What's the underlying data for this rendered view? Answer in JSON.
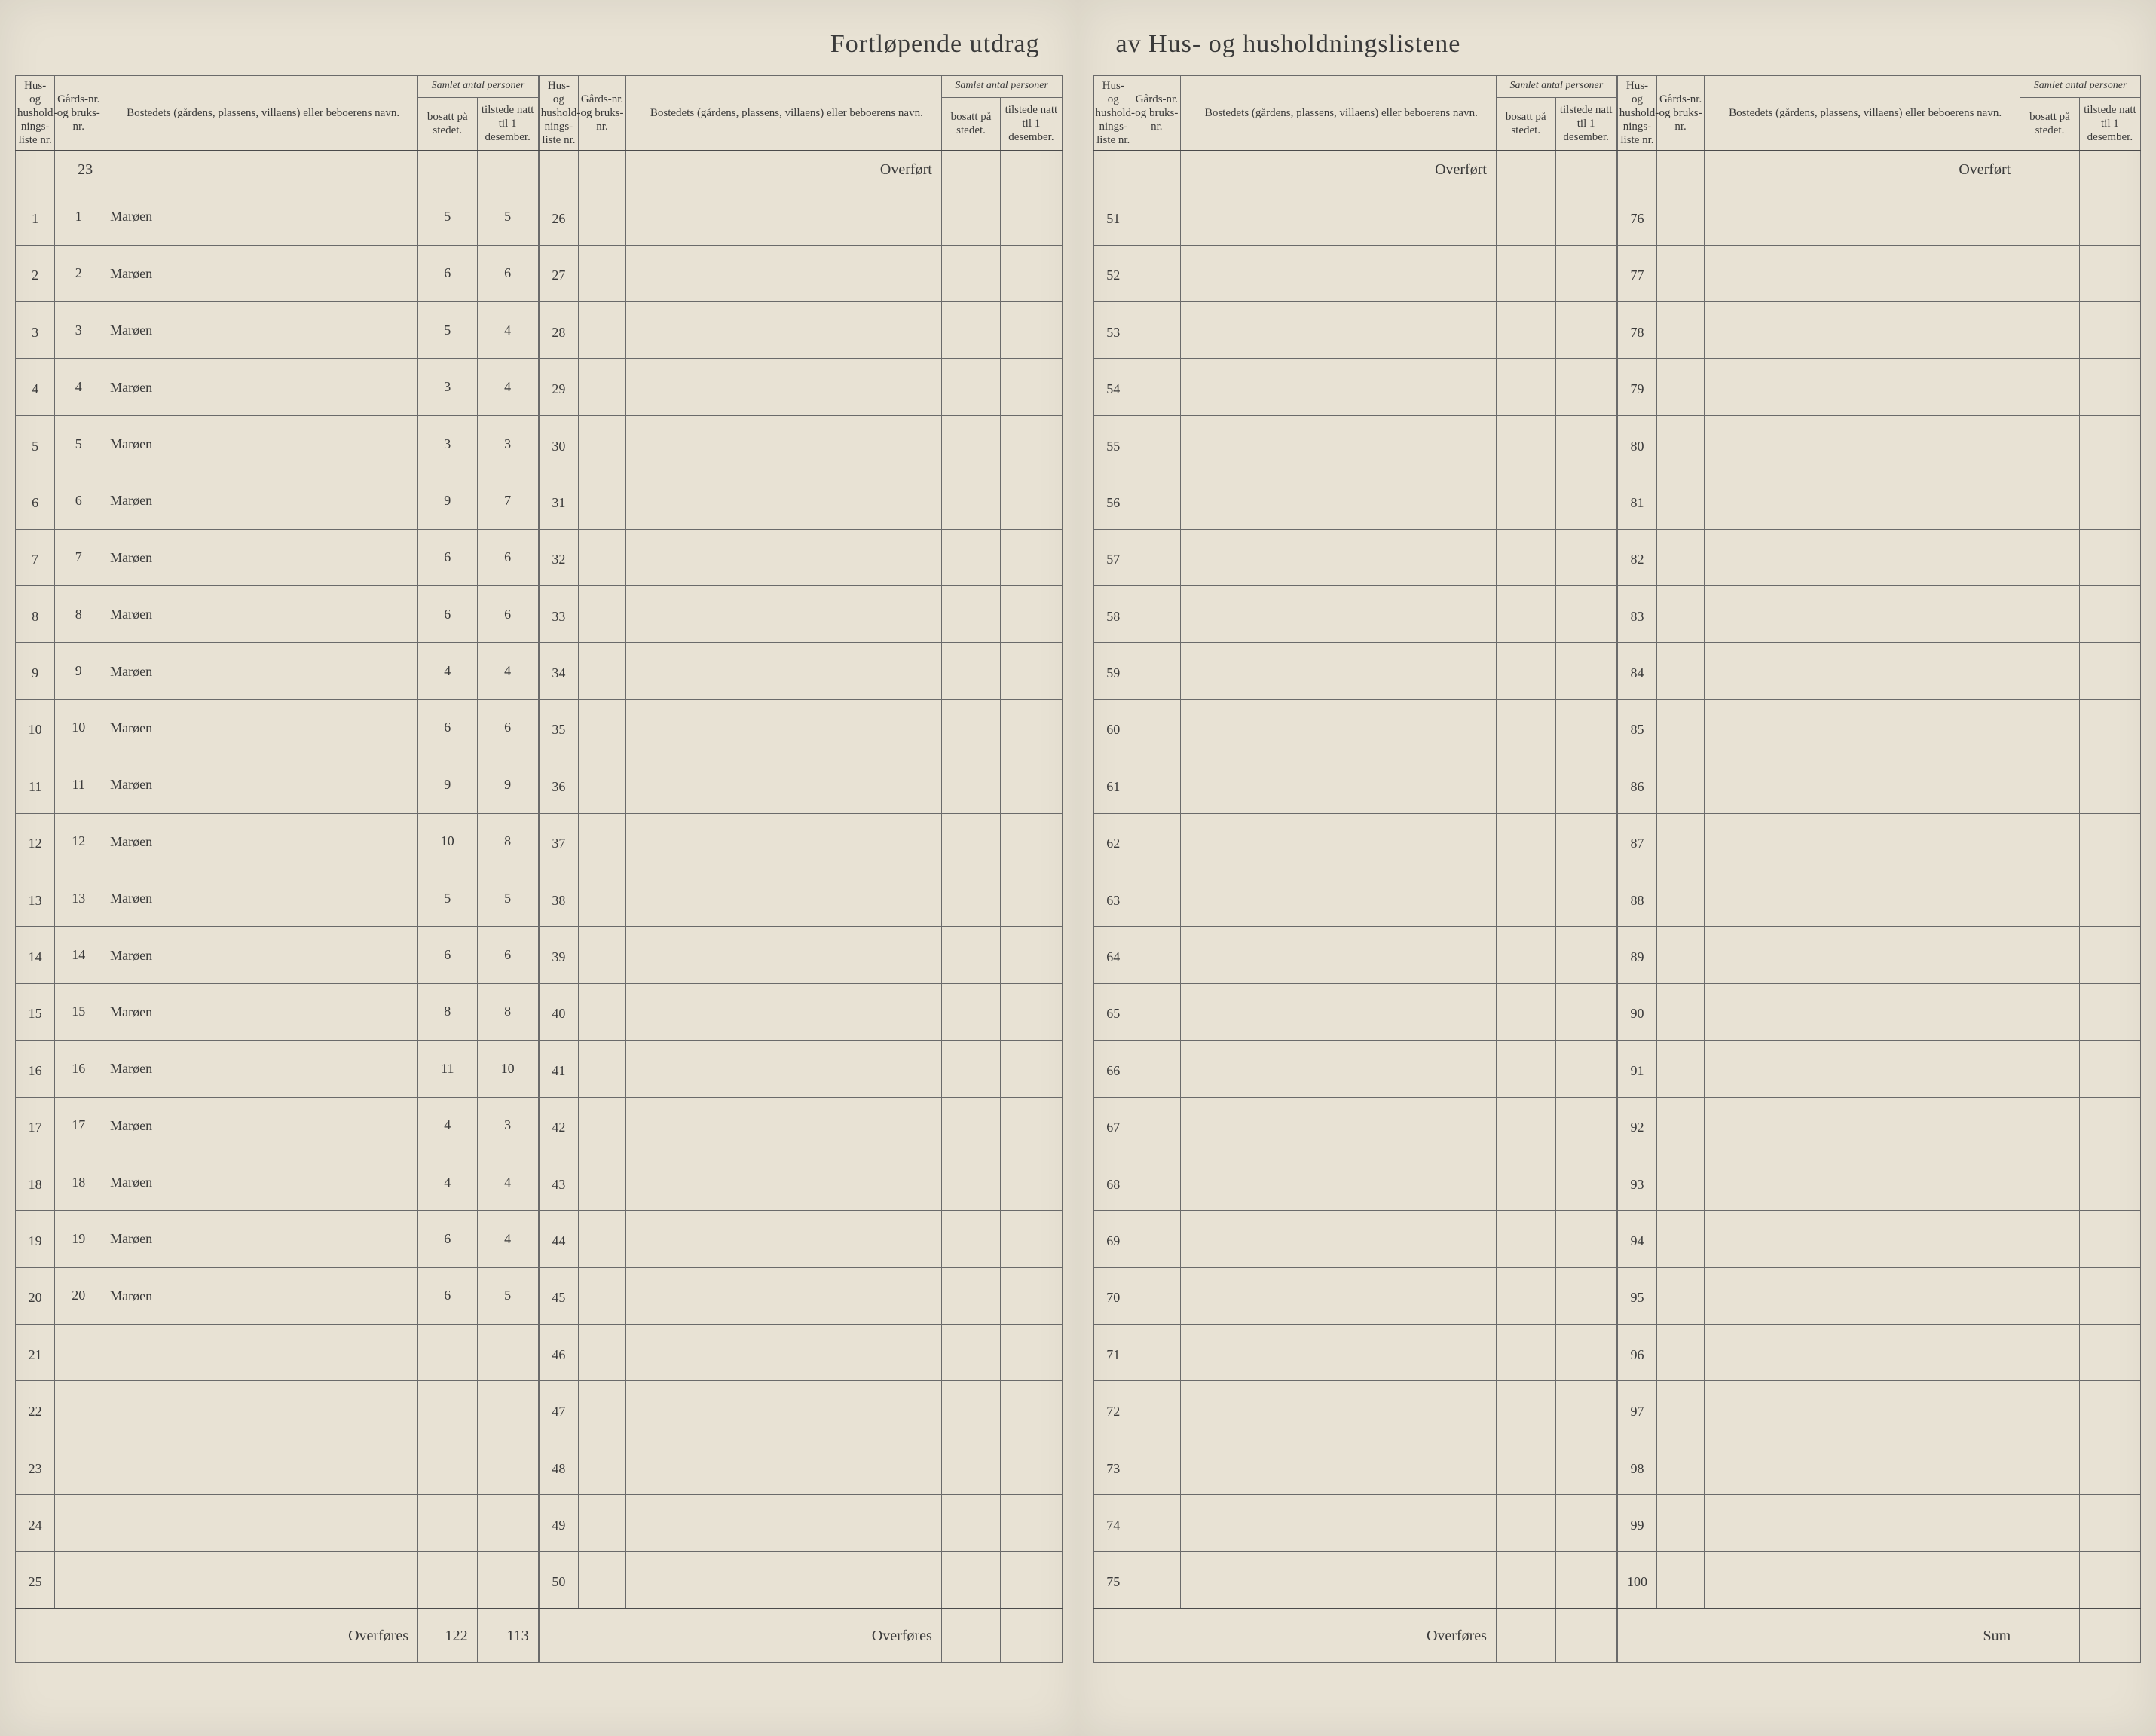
{
  "title_left": "Fortløpende utdrag",
  "title_right": "av Hus- og husholdningslistene",
  "header": {
    "liste_nr": "Hus- og hushold-nings-liste nr.",
    "gard_nr": "Gårds-nr. og bruks-nr.",
    "bosted": "Bostedets (gårdens, plassens, villaens) eller beboerens navn.",
    "samlet": "Samlet antal personer",
    "bosatt": "bosatt på stedet.",
    "tilstede": "tilstede natt til 1 desember."
  },
  "overfort_label": "Overført",
  "overfores_label": "Overføres",
  "sum_label": "Sum",
  "farm_number": "23",
  "rows_block1": [
    {
      "n": "1",
      "g": "1",
      "name": "Marøen",
      "b": "5",
      "t": "5"
    },
    {
      "n": "2",
      "g": "2",
      "name": "Marøen",
      "b": "6",
      "t": "6"
    },
    {
      "n": "3",
      "g": "3",
      "name": "Marøen",
      "b": "5",
      "t": "4"
    },
    {
      "n": "4",
      "g": "4",
      "name": "Marøen",
      "b": "3",
      "t": "4"
    },
    {
      "n": "5",
      "g": "5",
      "name": "Marøen",
      "b": "3",
      "t": "3"
    },
    {
      "n": "6",
      "g": "6",
      "name": "Marøen",
      "b": "9",
      "t": "7"
    },
    {
      "n": "7",
      "g": "7",
      "name": "Marøen",
      "b": "6",
      "t": "6"
    },
    {
      "n": "8",
      "g": "8",
      "name": "Marøen",
      "b": "6",
      "t": "6"
    },
    {
      "n": "9",
      "g": "9",
      "name": "Marøen",
      "b": "4",
      "t": "4"
    },
    {
      "n": "10",
      "g": "10",
      "name": "Marøen",
      "b": "6",
      "t": "6"
    },
    {
      "n": "11",
      "g": "11",
      "name": "Marøen",
      "b": "9",
      "t": "9"
    },
    {
      "n": "12",
      "g": "12",
      "name": "Marøen",
      "b": "10",
      "t": "8"
    },
    {
      "n": "13",
      "g": "13",
      "name": "Marøen",
      "b": "5",
      "t": "5"
    },
    {
      "n": "14",
      "g": "14",
      "name": "Marøen",
      "b": "6",
      "t": "6"
    },
    {
      "n": "15",
      "g": "15",
      "name": "Marøen",
      "b": "8",
      "t": "8"
    },
    {
      "n": "16",
      "g": "16",
      "name": "Marøen",
      "b": "11",
      "t": "10"
    },
    {
      "n": "17",
      "g": "17",
      "name": "Marøen",
      "b": "4",
      "t": "3"
    },
    {
      "n": "18",
      "g": "18",
      "name": "Marøen",
      "b": "4",
      "t": "4"
    },
    {
      "n": "19",
      "g": "19",
      "name": "Marøen",
      "b": "6",
      "t": "4"
    },
    {
      "n": "20",
      "g": "20",
      "name": "Marøen",
      "b": "6",
      "t": "5"
    },
    {
      "n": "21",
      "g": "",
      "name": "",
      "b": "",
      "t": ""
    },
    {
      "n": "22",
      "g": "",
      "name": "",
      "b": "",
      "t": ""
    },
    {
      "n": "23",
      "g": "",
      "name": "",
      "b": "",
      "t": ""
    },
    {
      "n": "24",
      "g": "",
      "name": "",
      "b": "",
      "t": ""
    },
    {
      "n": "25",
      "g": "",
      "name": "",
      "b": "",
      "t": ""
    }
  ],
  "total_bosatt": "122",
  "total_tilstede": "113",
  "rows_block2_start": 26,
  "rows_block3_start": 51,
  "rows_block4_start": 76,
  "block_row_count": 25,
  "colors": {
    "paper": "#e8e2d4",
    "ink_printed": "#3a3a3a",
    "ink_hand": "#1a2b7a",
    "rule": "#6a6a6a"
  }
}
